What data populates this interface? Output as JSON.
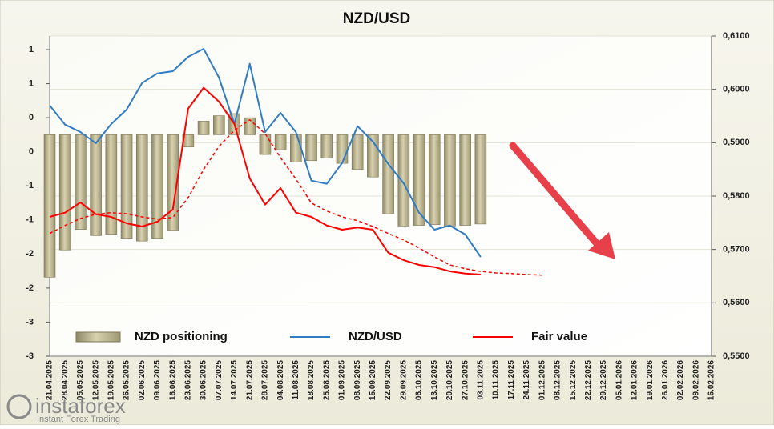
{
  "chart_data": {
    "type": "combo",
    "title": "NZD/USD",
    "categories": [
      "21.04.2025",
      "28.04.2025",
      "05.05.2025",
      "12.05.2025",
      "19.05.2025",
      "26.05.2025",
      "02.06.2025",
      "09.06.2025",
      "16.06.2025",
      "23.06.2025",
      "30.06.2025",
      "07.07.2025",
      "14.07.2025",
      "21.07.2025",
      "28.07.2025",
      "04.08.2025",
      "11.08.2025",
      "18.08.2025",
      "25.08.2025",
      "01.09.2025",
      "08.09.2025",
      "15.09.2025",
      "22.09.2025",
      "29.09.2025",
      "06.10.2025",
      "13.10.2025",
      "20.10.2025",
      "27.10.2025",
      "03.11.2025",
      "10.11.2025",
      "17.11.2025",
      "24.11.2025",
      "01.12.2025",
      "08.12.2025",
      "15.12.2025",
      "22.12.2025",
      "29.12.2025",
      "05.01.2026",
      "12.01.2026",
      "19.01.2026",
      "26.01.2026",
      "02.02.2026",
      "09.02.2026",
      "16.02.2026"
    ],
    "series": [
      {
        "name": "NZD positioning",
        "type": "bar",
        "axis": "y",
        "color": "#b3ab85",
        "values": [
          -2.09,
          -1.69,
          -1.39,
          -1.48,
          -1.46,
          -1.52,
          -1.56,
          -1.52,
          -1.4,
          -0.18,
          0.2,
          0.28,
          0.31,
          0.25,
          -0.29,
          -0.22,
          -0.4,
          -0.38,
          -0.34,
          -0.42,
          -0.51,
          -0.62,
          -1.16,
          -1.34,
          -1.33,
          -1.32,
          -1.34,
          -1.33,
          -1.31,
          null,
          null,
          null,
          null,
          null,
          null,
          null,
          null,
          null,
          null,
          null,
          null,
          null,
          null,
          null
        ]
      },
      {
        "name": "NZD/USD",
        "type": "line",
        "axis": "y2",
        "color": "#2f7cc4",
        "values": [
          0.597,
          0.5934,
          0.592,
          0.5899,
          0.5935,
          0.5962,
          0.6012,
          0.603,
          0.6034,
          0.6061,
          0.6076,
          0.6022,
          0.5935,
          0.6048,
          0.592,
          0.5956,
          0.592,
          0.5829,
          0.5823,
          0.5862,
          0.5931,
          0.5902,
          0.586,
          0.5824,
          0.5769,
          0.5737,
          0.5745,
          0.5728,
          0.5686,
          null,
          null,
          null,
          null,
          null,
          null,
          null,
          null,
          null,
          null,
          null,
          null,
          null,
          null,
          null
        ]
      },
      {
        "name": "Fair value",
        "type": "line",
        "axis": "y2",
        "color": "#ff0000",
        "values": [
          0.5761,
          0.5769,
          0.5788,
          0.5766,
          0.5761,
          0.5749,
          0.5743,
          0.5752,
          0.5775,
          0.5964,
          0.6003,
          0.5977,
          0.5935,
          0.5833,
          0.5784,
          0.5815,
          0.5769,
          0.5761,
          0.5745,
          0.5737,
          0.5741,
          0.5737,
          0.5694,
          0.568,
          0.5671,
          0.5667,
          0.5659,
          0.5655,
          0.5653,
          null,
          null,
          null,
          null,
          null,
          null,
          null,
          null,
          null,
          null,
          null,
          null,
          null,
          null,
          null
        ]
      },
      {
        "type": "line",
        "axis": "y2",
        "color": "#ff0000",
        "dash": "dashed",
        "values": [
          0.573,
          0.5745,
          0.5758,
          0.5766,
          0.5769,
          0.5767,
          0.5761,
          0.5757,
          0.576,
          0.5797,
          0.585,
          0.5893,
          0.5923,
          0.5943,
          0.5917,
          0.5872,
          0.5832,
          0.5787,
          0.5772,
          0.5761,
          0.5754,
          0.5743,
          0.573,
          0.5718,
          0.5703,
          0.5686,
          0.5671,
          0.5664,
          0.5659,
          0.5656,
          0.5655,
          0.5653,
          0.5652,
          null,
          null,
          null,
          null,
          null,
          null,
          null,
          null,
          null,
          null,
          null
        ]
      }
    ],
    "ylim": [
      -3.25,
      1.45
    ],
    "yticks": [
      {
        "value": 1.25,
        "label": "1"
      },
      {
        "value": 0.75,
        "label": "1"
      },
      {
        "value": 0.25,
        "label": "0"
      },
      {
        "value": -0.25,
        "label": "0"
      },
      {
        "value": -0.75,
        "label": "-1"
      },
      {
        "value": -1.25,
        "label": "-1"
      },
      {
        "value": -1.75,
        "label": "-2"
      },
      {
        "value": -2.25,
        "label": "-2"
      },
      {
        "value": -2.75,
        "label": "-3"
      },
      {
        "value": -3.25,
        "label": "-3"
      }
    ],
    "y2lim": [
      0.55,
      0.61
    ],
    "y2ticks": [
      {
        "value": 0.61,
        "label": "0,6100"
      },
      {
        "value": 0.6,
        "label": "0,6000"
      },
      {
        "value": 0.59,
        "label": "0,5900"
      },
      {
        "value": 0.58,
        "label": "0,5800"
      },
      {
        "value": 0.57,
        "label": "0,5700"
      },
      {
        "value": 0.56,
        "label": "0,5600"
      },
      {
        "value": 0.55,
        "label": "0,5500"
      }
    ],
    "grid": true,
    "legend": "bottom"
  },
  "watermark": {
    "brand": "instaforex",
    "tagline": "Instant Forex Trading"
  }
}
